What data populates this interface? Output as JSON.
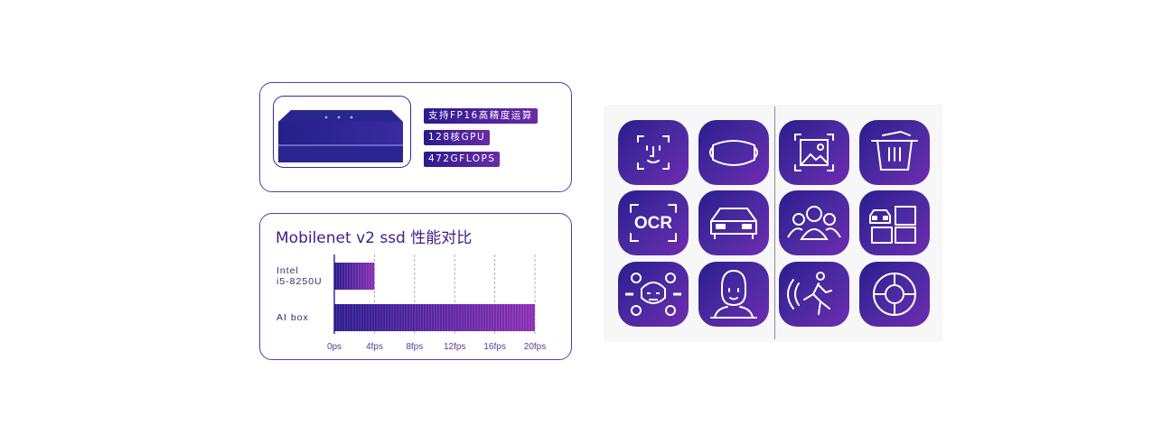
{
  "specs": {
    "tags": [
      "支持FP16高精度运算",
      "128核GPU",
      "472GFLOPS"
    ]
  },
  "chart_data": {
    "type": "bar",
    "title": "Mobilenet v2 ssd 性能对比",
    "orientation": "horizontal",
    "categories": [
      "Intel i5-8250U",
      "AI box"
    ],
    "category_lines": [
      [
        "Intel",
        "i5-8250U"
      ],
      [
        "AI box"
      ]
    ],
    "values": [
      4,
      20
    ],
    "xlim": [
      0,
      20
    ],
    "x_ticks": [
      "0ps",
      "4fps",
      "8fps",
      "12fps",
      "16fps",
      "20fps"
    ],
    "grid": "vertical-dashed",
    "colors": {
      "bar_start": "#2b1a8f",
      "bar_end": "#8a2fb3"
    }
  },
  "icons": {
    "tiles": [
      {
        "name": "face-recognition-icon"
      },
      {
        "name": "face-mask-icon"
      },
      {
        "name": "image-recognition-icon"
      },
      {
        "name": "trash-bin-icon"
      },
      {
        "name": "ocr-icon",
        "text": "OCR"
      },
      {
        "name": "vehicle-icon"
      },
      {
        "name": "crowd-icon"
      },
      {
        "name": "vehicle-grid-icon"
      },
      {
        "name": "face-keypoints-icon"
      },
      {
        "name": "person-portrait-icon"
      },
      {
        "name": "running-person-icon"
      },
      {
        "name": "target-tracking-icon"
      }
    ]
  },
  "colors": {
    "accent": "#3a1e8c",
    "tile_start": "#2a1d8e",
    "tile_end": "#6e2bb0"
  }
}
